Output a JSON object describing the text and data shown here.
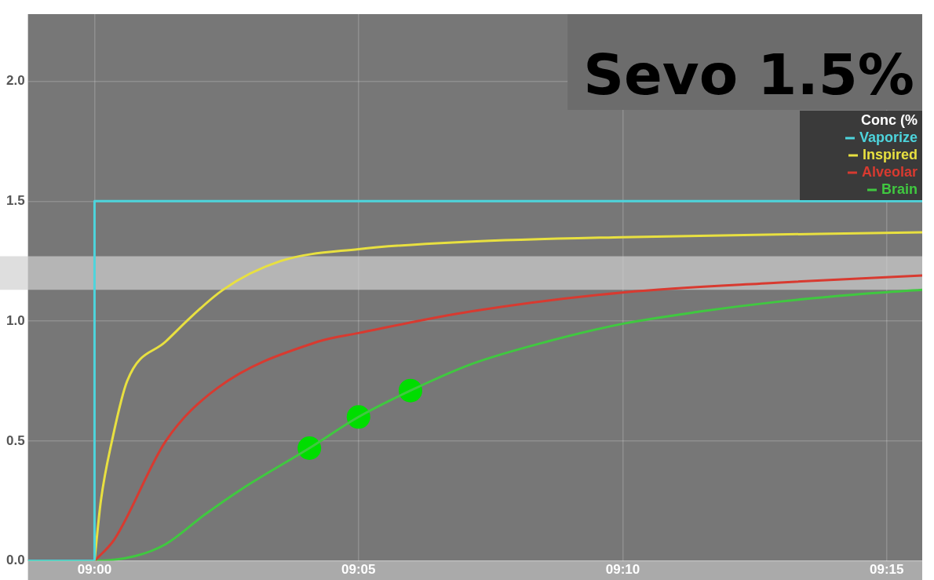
{
  "chart_data": {
    "type": "line",
    "title": "Sevo 1.5%",
    "legend_title": "Conc (%",
    "legend": "top right",
    "grid": true,
    "marker": "none",
    "line_style": "solid",
    "xlim": [
      8.979,
      9.2612
    ],
    "xticks": [
      {
        "value": 9,
        "label": "09:00"
      },
      {
        "value": 9.0833,
        "label": "09:05"
      },
      {
        "value": 9.1667,
        "label": "09:10"
      },
      {
        "value": 9.25,
        "label": "09:15"
      }
    ],
    "ylim": [
      0,
      2.28
    ],
    "yticks": [
      {
        "value": 0,
        "label": "0.0"
      },
      0.5,
      {
        "value": 1,
        "label": "1.0"
      },
      1.5,
      {
        "value": 2,
        "label": "2.0"
      }
    ],
    "bands": [
      {
        "axis": "y",
        "from": 1.13,
        "to": 1.27,
        "color": "#d0d0d0"
      }
    ],
    "series": [
      {
        "name": "Vaporize",
        "color": "#4dd4dc",
        "x": [
          8.979,
          9,
          9,
          9.2612
        ],
        "values": [
          0,
          0,
          1.5,
          1.5
        ]
      },
      {
        "name": "Inspired",
        "color": "#e8e040",
        "x": [
          9,
          9.002,
          9.0055,
          9.0103,
          9.0225,
          9.0405,
          9.0587,
          9.0833,
          9.1167,
          9.1667,
          9.2612
        ],
        "values": [
          0,
          0.25,
          0.5,
          0.75,
          0.915,
          1.13,
          1.25,
          1.3,
          1.33,
          1.35,
          1.37
        ]
      },
      {
        "name": "Alveolar",
        "color": "#d83a30",
        "x": [
          9,
          9.0063,
          9.0225,
          9.0387,
          9.0707,
          9.0833,
          9.1188,
          9.1672,
          9.2153,
          9.2612
        ],
        "values": [
          0,
          0.09,
          0.5,
          0.72,
          0.915,
          0.95,
          1.04,
          1.12,
          1.16,
          1.19
        ]
      },
      {
        "name": "Brain",
        "color": "#40c840",
        "x": [
          8.979,
          9,
          9.0128,
          9.0225,
          9.0345,
          9.0465,
          9.0678,
          9.0833,
          9.0997,
          9.1188,
          9.143,
          9.1672,
          9.1913,
          9.2153,
          9.2395,
          9.2612
        ],
        "values": [
          0,
          0,
          0.02,
          0.07,
          0.19,
          0.3,
          0.47,
          0.6,
          0.71,
          0.82,
          0.915,
          0.99,
          1.04,
          1.08,
          1.11,
          1.13
        ]
      },
      {
        "type": "scatter",
        "marker": "circle",
        "color": "#00dd00",
        "x": [
          9.0678,
          9.0833,
          9.0997
        ],
        "values": [
          0.47,
          0.6,
          0.71
        ]
      }
    ]
  }
}
